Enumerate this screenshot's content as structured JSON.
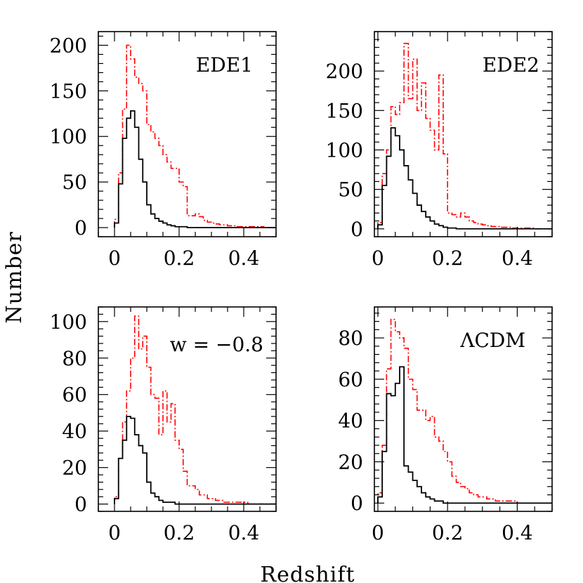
{
  "figure": {
    "xlabel": "Redshift",
    "ylabel": "Number"
  },
  "colors": {
    "frame": "#000000",
    "series_solid": "#000000",
    "series_dashdot": "#ff0000"
  },
  "chart_data": [
    {
      "type": "histogram",
      "label": "EDE1",
      "xlim": [
        -0.05,
        0.5
      ],
      "ylim": [
        -10,
        215
      ],
      "xticks": [
        0,
        0.2,
        0.4
      ],
      "xtick_labels": [
        "0",
        "0.2",
        "0.4"
      ],
      "yticks": [
        0,
        50,
        100,
        150,
        200
      ],
      "ytick_labels": [
        "0",
        "50",
        "100",
        "150",
        "200"
      ],
      "bin_edges": [
        0,
        0.0125,
        0.025,
        0.0375,
        0.05,
        0.0625,
        0.075,
        0.0875,
        0.1,
        0.1125,
        0.125,
        0.1375,
        0.15,
        0.1625,
        0.175,
        0.1875,
        0.2,
        0.2125,
        0.225,
        0.2375,
        0.25,
        0.2625,
        0.275,
        0.2875,
        0.3,
        0.3125,
        0.325,
        0.3375,
        0.35,
        0.3625,
        0.375,
        0.3875,
        0.4,
        0.4125,
        0.425,
        0.4375,
        0.45,
        0.4625,
        0.475,
        0.4875,
        0.5
      ],
      "series": [
        {
          "style": "dashdot",
          "values": [
            9,
            60,
            130,
            200,
            185,
            165,
            158,
            150,
            113,
            105,
            98,
            90,
            80,
            72,
            65,
            65,
            50,
            45,
            13,
            13,
            15,
            12,
            8,
            6,
            5,
            4,
            3,
            3,
            2,
            2,
            1,
            1,
            1,
            1,
            1,
            1,
            1,
            0,
            0,
            0
          ]
        },
        {
          "style": "solid",
          "values": [
            5,
            48,
            98,
            120,
            128,
            110,
            75,
            50,
            25,
            15,
            10,
            7,
            5,
            3,
            2,
            1,
            1,
            1,
            0,
            0,
            0,
            0,
            0,
            0,
            0,
            0,
            0,
            0,
            0,
            0,
            0,
            0,
            0,
            0,
            0,
            0,
            0,
            0,
            0,
            0
          ]
        }
      ]
    },
    {
      "type": "histogram",
      "label": "EDE2",
      "xlim": [
        -0.01,
        0.5
      ],
      "ylim": [
        -10,
        250
      ],
      "xticks": [
        0,
        0.2,
        0.4
      ],
      "xtick_labels": [
        "0",
        "0.2",
        "0.4"
      ],
      "yticks": [
        0,
        50,
        100,
        150,
        200
      ],
      "ytick_labels": [
        "0",
        "50",
        "100",
        "150",
        "200"
      ],
      "bin_edges": [
        0,
        0.0125,
        0.025,
        0.0375,
        0.05,
        0.0625,
        0.075,
        0.0875,
        0.1,
        0.1125,
        0.125,
        0.1375,
        0.15,
        0.1625,
        0.175,
        0.1875,
        0.2,
        0.2125,
        0.225,
        0.2375,
        0.25,
        0.2625,
        0.275,
        0.2875,
        0.3,
        0.3125,
        0.325,
        0.3375,
        0.35,
        0.3625,
        0.375,
        0.3875,
        0.4,
        0.4125,
        0.425,
        0.4375,
        0.45,
        0.4625,
        0.475,
        0.4875,
        0.5
      ],
      "series": [
        {
          "style": "dashdot",
          "values": [
            8,
            70,
            100,
            155,
            145,
            160,
            235,
            165,
            215,
            150,
            185,
            140,
            125,
            100,
            195,
            95,
            20,
            18,
            15,
            20,
            15,
            10,
            8,
            6,
            5,
            4,
            3,
            3,
            2,
            2,
            2,
            1,
            1,
            1,
            1,
            1,
            0,
            0,
            0,
            0
          ]
        },
        {
          "style": "solid",
          "values": [
            5,
            55,
            92,
            128,
            118,
            100,
            80,
            62,
            45,
            30,
            22,
            15,
            10,
            6,
            4,
            2,
            1,
            1,
            0,
            0,
            0,
            0,
            0,
            0,
            0,
            0,
            0,
            0,
            0,
            0,
            0,
            0,
            0,
            0,
            0,
            0,
            0,
            0,
            0,
            0
          ]
        }
      ]
    },
    {
      "type": "histogram",
      "label": "w = −0.8",
      "xlim": [
        -0.05,
        0.5
      ],
      "ylim": [
        -4,
        108
      ],
      "xticks": [
        0,
        0.2,
        0.4
      ],
      "xtick_labels": [
        "0",
        "0.2",
        "0.4"
      ],
      "yticks": [
        0,
        20,
        40,
        60,
        80,
        100
      ],
      "ytick_labels": [
        "0",
        "20",
        "40",
        "60",
        "80",
        "100"
      ],
      "bin_edges": [
        0,
        0.0125,
        0.025,
        0.0375,
        0.05,
        0.0625,
        0.075,
        0.0875,
        0.1,
        0.1125,
        0.125,
        0.1375,
        0.15,
        0.1625,
        0.175,
        0.1875,
        0.2,
        0.2125,
        0.225,
        0.2375,
        0.25,
        0.2625,
        0.275,
        0.2875,
        0.3,
        0.3125,
        0.325,
        0.3375,
        0.35,
        0.3625,
        0.375,
        0.3875,
        0.4,
        0.4125,
        0.425,
        0.4375,
        0.45,
        0.4625,
        0.475,
        0.4875,
        0.5
      ],
      "series": [
        {
          "style": "dashdot",
          "values": [
            4,
            25,
            45,
            62,
            80,
            103,
            85,
            92,
            75,
            60,
            58,
            38,
            62,
            45,
            55,
            35,
            30,
            18,
            10,
            10,
            8,
            5,
            5,
            3,
            3,
            2,
            2,
            1,
            1,
            1,
            1,
            1,
            1,
            0,
            0,
            0,
            0,
            0,
            0,
            0
          ]
        },
        {
          "style": "solid",
          "values": [
            3,
            25,
            35,
            48,
            47,
            38,
            32,
            28,
            12,
            6,
            4,
            2,
            1,
            1,
            1,
            0,
            0,
            0,
            0,
            0,
            0,
            0,
            0,
            0,
            0,
            0,
            0,
            0,
            0,
            0,
            0,
            0,
            0,
            0,
            0,
            0,
            0,
            0,
            0,
            0
          ]
        }
      ]
    },
    {
      "type": "histogram",
      "label": "ΛCDM",
      "xlim": [
        -0.01,
        0.5
      ],
      "ylim": [
        -4,
        95
      ],
      "xticks": [
        0,
        0.2,
        0.4
      ],
      "xtick_labels": [
        "0",
        "0.2",
        "0.4"
      ],
      "yticks": [
        0,
        20,
        40,
        60,
        80
      ],
      "ytick_labels": [
        "0",
        "20",
        "40",
        "60",
        "80"
      ],
      "bin_edges": [
        0,
        0.0125,
        0.025,
        0.0375,
        0.05,
        0.0625,
        0.075,
        0.0875,
        0.1,
        0.1125,
        0.125,
        0.1375,
        0.15,
        0.1625,
        0.175,
        0.1875,
        0.2,
        0.2125,
        0.225,
        0.2375,
        0.25,
        0.2625,
        0.275,
        0.2875,
        0.3,
        0.3125,
        0.325,
        0.3375,
        0.35,
        0.3625,
        0.375,
        0.3875,
        0.4,
        0.4125,
        0.425,
        0.4375,
        0.45,
        0.4625,
        0.475,
        0.4875,
        0.5
      ],
      "series": [
        {
          "style": "dashdot",
          "values": [
            5,
            28,
            65,
            89,
            83,
            80,
            75,
            60,
            55,
            45,
            45,
            40,
            42,
            32,
            30,
            25,
            20,
            13,
            10,
            8,
            7,
            5,
            4,
            3,
            3,
            2,
            2,
            1,
            1,
            1,
            1,
            1,
            0,
            0,
            0,
            0,
            0,
            0,
            0,
            0
          ]
        },
        {
          "style": "solid",
          "values": [
            3,
            25,
            53,
            52,
            58,
            66,
            18,
            15,
            11,
            8,
            5,
            3,
            2,
            1,
            1,
            0,
            0,
            0,
            0,
            0,
            0,
            0,
            0,
            0,
            0,
            0,
            0,
            0,
            0,
            0,
            0,
            0,
            0,
            0,
            0,
            0,
            0,
            0,
            0,
            0
          ]
        }
      ]
    }
  ]
}
